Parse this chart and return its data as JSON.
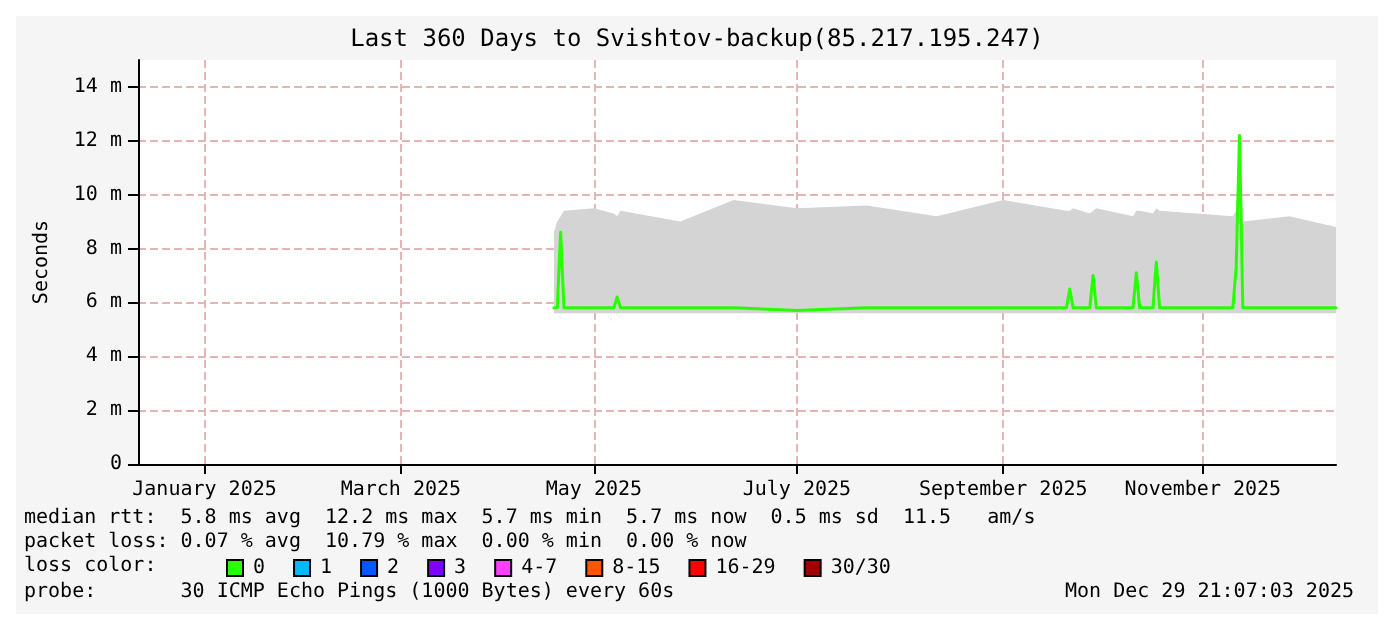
{
  "chart_data": {
    "type": "line",
    "title": "Last 360 Days to Svishtov-backup(85.217.195.247)",
    "ylabel": "Seconds",
    "legend_title": "loss color:",
    "legend": "bottom",
    "grid": true,
    "marker": "none",
    "line_style": "solid",
    "xlim": [
      "2025-01-03",
      "2025-12-29"
    ],
    "xticks": [
      {
        "value": "2025-01-23",
        "label": "January 2025"
      },
      {
        "value": "2025-03-23",
        "label": "March 2025"
      },
      {
        "value": "2025-05-20",
        "label": "May 2025"
      },
      {
        "value": "2025-07-20",
        "label": "July 2025"
      },
      {
        "value": "2025-09-20",
        "label": "September 2025"
      },
      {
        "value": "2025-11-19",
        "label": "November 2025"
      }
    ],
    "ylim": [
      0,
      15
    ],
    "yticks": [
      0,
      {
        "value": 2,
        "label": "2 m"
      },
      {
        "value": 4,
        "label": "4 m"
      },
      {
        "value": 6,
        "label": "6 m"
      },
      {
        "value": 8,
        "label": "8 m"
      },
      {
        "value": 10,
        "label": "10 m"
      },
      {
        "value": 12,
        "label": "12 m"
      },
      {
        "value": 14,
        "label": "14 m"
      }
    ],
    "x": [
      "2025-05-08",
      "2025-05-09",
      "2025-05-10",
      "2025-05-11",
      "2025-05-20",
      "2025-05-26",
      "2025-05-27",
      "2025-05-28",
      "2025-06-15",
      "2025-07-01",
      "2025-07-20",
      "2025-08-10",
      "2025-08-31",
      "2025-09-20",
      "2025-10-09",
      "2025-10-10",
      "2025-10-11",
      "2025-10-16",
      "2025-10-17",
      "2025-10-18",
      "2025-10-29",
      "2025-10-30",
      "2025-10-31",
      "2025-11-04",
      "2025-11-05",
      "2025-11-06",
      "2025-11-28",
      "2025-11-29",
      "2025-11-30",
      "2025-12-01",
      "2025-12-15",
      "2025-12-29"
    ],
    "series": [
      {
        "name": "0",
        "color": "#26ff00",
        "values": [
          5.8,
          5.8,
          8.6,
          5.8,
          5.8,
          5.8,
          6.2,
          5.8,
          5.8,
          5.8,
          5.7,
          5.8,
          5.8,
          5.8,
          5.8,
          6.5,
          5.8,
          5.8,
          7.0,
          5.8,
          5.8,
          7.1,
          5.8,
          5.8,
          7.5,
          5.8,
          5.8,
          7.3,
          12.2,
          5.8,
          5.8,
          5.8
        ],
        "lower": [
          5.6,
          5.6,
          5.6,
          5.6,
          5.6,
          5.6,
          5.6,
          5.6,
          5.6,
          5.6,
          5.6,
          5.6,
          5.6,
          5.6,
          5.6,
          5.6,
          5.6,
          5.6,
          5.6,
          5.6,
          5.6,
          5.6,
          5.6,
          5.6,
          5.6,
          5.6,
          5.6,
          5.6,
          5.6,
          5.6,
          5.6,
          5.6
        ],
        "upper": [
          8.6,
          9.0,
          9.2,
          9.4,
          9.5,
          9.3,
          9.2,
          9.4,
          9.0,
          9.8,
          9.5,
          9.6,
          9.2,
          9.8,
          9.4,
          9.4,
          9.5,
          9.3,
          9.4,
          9.5,
          9.2,
          9.4,
          9.4,
          9.3,
          9.5,
          9.4,
          9.2,
          9.4,
          12.2,
          9.0,
          9.2,
          8.8
        ]
      },
      {
        "name": "1",
        "color": "#00b8ff",
        "values": [
          null,
          null,
          null,
          null,
          null,
          null,
          null,
          null,
          null,
          null,
          null,
          null,
          null,
          null,
          null,
          null,
          null,
          null,
          null,
          null,
          null,
          null,
          null,
          null,
          null,
          null,
          null,
          null,
          null,
          null,
          null,
          null
        ]
      },
      {
        "name": "2",
        "color": "#0059ff",
        "values": [
          null,
          null,
          null,
          null,
          null,
          null,
          null,
          null,
          null,
          null,
          null,
          null,
          null,
          null,
          null,
          null,
          null,
          null,
          null,
          null,
          null,
          null,
          null,
          null,
          null,
          null,
          null,
          null,
          null,
          null,
          null,
          null
        ]
      },
      {
        "name": "3",
        "color": "#7e00ff",
        "values": [
          null,
          null,
          null,
          null,
          null,
          null,
          null,
          null,
          null,
          null,
          null,
          null,
          null,
          null,
          null,
          null,
          null,
          null,
          null,
          null,
          null,
          null,
          null,
          null,
          null,
          null,
          null,
          null,
          null,
          null,
          null,
          null
        ]
      },
      {
        "name": "4-7",
        "color": "#ff3eff",
        "values": [
          null,
          null,
          null,
          null,
          null,
          null,
          null,
          null,
          null,
          null,
          null,
          null,
          null,
          null,
          null,
          null,
          null,
          null,
          null,
          null,
          null,
          null,
          null,
          null,
          null,
          null,
          null,
          null,
          null,
          null,
          null,
          null
        ]
      },
      {
        "name": "8-15",
        "color": "#ff5500",
        "values": [
          null,
          null,
          null,
          null,
          null,
          null,
          null,
          null,
          null,
          null,
          null,
          null,
          null,
          null,
          null,
          null,
          null,
          null,
          null,
          null,
          null,
          null,
          null,
          null,
          null,
          null,
          null,
          null,
          null,
          null,
          null,
          null
        ]
      },
      {
        "name": "16-29",
        "color": "#ff0000",
        "values": [
          null,
          null,
          null,
          null,
          null,
          null,
          null,
          null,
          null,
          null,
          null,
          null,
          null,
          null,
          null,
          null,
          null,
          null,
          null,
          null,
          null,
          null,
          null,
          null,
          null,
          null,
          null,
          null,
          null,
          null,
          null,
          null
        ]
      },
      {
        "name": "30/30",
        "color": "#a10000",
        "values": [
          null,
          null,
          null,
          null,
          null,
          null,
          null,
          null,
          null,
          null,
          null,
          null,
          null,
          null,
          null,
          null,
          null,
          null,
          null,
          null,
          null,
          null,
          null,
          null,
          null,
          null,
          null,
          null,
          null,
          null,
          null,
          null
        ]
      }
    ],
    "annotations": [
      "median rtt:  5.8 ms avg  12.2 ms max  5.7 ms min  5.7 ms now  0.5 ms sd  11.5   am/s",
      "packet loss: 0.07 % avg  10.79 % max  0.00 % min  0.00 % now",
      "probe:       30 ICMP Echo Pings (1000 Bytes) every 60s",
      "Mon Dec 29 21:07:03 2025"
    ]
  }
}
